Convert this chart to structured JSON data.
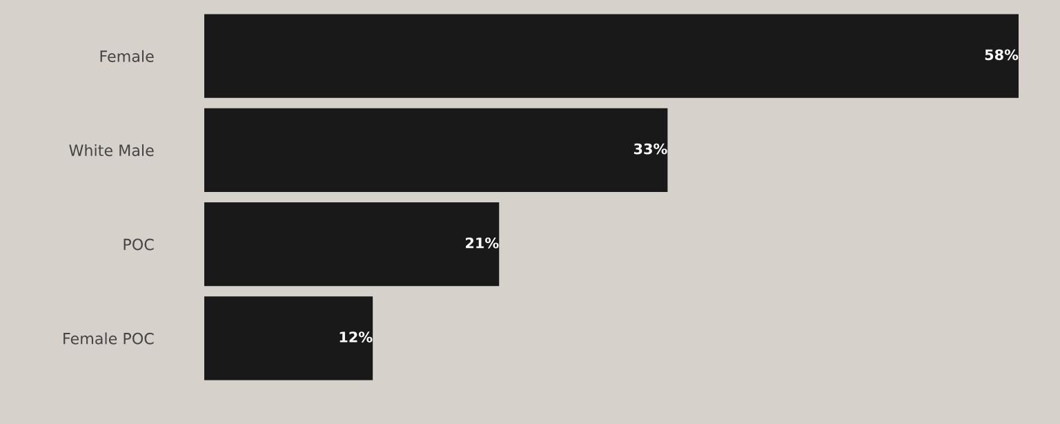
{
  "chart_data": {
    "type": "bar",
    "orientation": "horizontal",
    "categories": [
      "Female",
      "White Male",
      "POC",
      "Female POC"
    ],
    "values": [
      58,
      33,
      21,
      12
    ],
    "value_labels": [
      "58%",
      "33%",
      "21%",
      "12%"
    ],
    "color": "#191919",
    "xlim": [
      0,
      58
    ],
    "tick_labels": "y",
    "grid": false,
    "legend": false
  }
}
